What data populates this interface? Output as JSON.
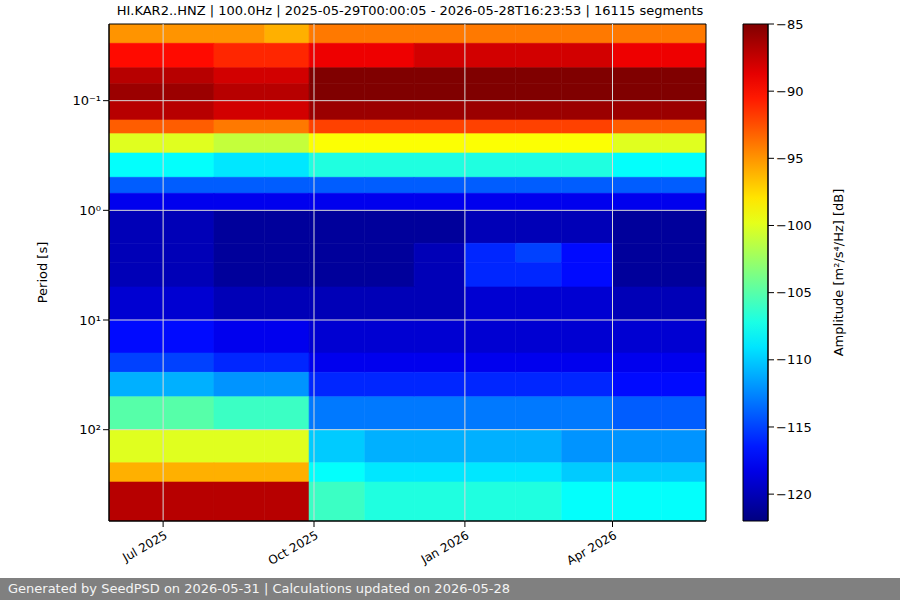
{
  "chart_data": {
    "type": "heatmap",
    "title": "HI.KAR2..HNZ | 100.0Hz | 2025-05-29T00:00:05 - 2026-05-28T16:23:53 | 16115 segments",
    "y_label": "Period [s]",
    "footer": "Generated by SeedPSD on 2026-05-31 | Calculations updated on 2026-05-28",
    "log": "y",
    "grid": true,
    "xlim": [
      "2025-05-29",
      "2026-05-28"
    ],
    "xticks": [
      {
        "value": "2025-07-01",
        "label": "Jul 2025"
      },
      {
        "value": "2025-10-01",
        "label": "Oct 2025"
      },
      {
        "value": "2026-01-01",
        "label": "Jan 2026"
      },
      {
        "value": "2026-04-01",
        "label": "Apr 2026"
      }
    ],
    "ylim": [
      0.02,
      680
    ],
    "yticks": [
      {
        "value": 0.1,
        "label": "10⁻¹"
      },
      {
        "value": 1,
        "label": "10⁰"
      },
      {
        "value": 10,
        "label": "10¹"
      },
      {
        "value": 100,
        "label": "10²"
      }
    ],
    "x_edges": [
      "2025-05-29",
      "2025-07-01",
      "2025-08-01",
      "2025-09-01",
      "2025-09-28",
      "2025-11-01",
      "2025-12-01",
      "2026-01-01",
      "2026-02-01",
      "2026-03-01",
      "2026-04-01",
      "2026-05-01",
      "2026-05-28"
    ],
    "y_edges": [
      0.02,
      0.03,
      0.05,
      0.07,
      0.1,
      0.15,
      0.2,
      0.3,
      0.5,
      0.7,
      1,
      2,
      3,
      5,
      10,
      20,
      30,
      50,
      100,
      200,
      300,
      680
    ],
    "values": [
      [
        -95,
        -95,
        -95,
        -96,
        -94,
        -94,
        -94,
        -94,
        -94,
        -94,
        -94,
        -94
      ],
      [
        -90,
        -90,
        -91,
        -91,
        -89,
        -89,
        -88,
        -88,
        -88,
        -88,
        -89,
        -89
      ],
      [
        -87,
        -87,
        -88,
        -88,
        -85,
        -85,
        -85,
        -85,
        -85,
        -85,
        -85,
        -85
      ],
      [
        -86,
        -86,
        -87,
        -87,
        -85,
        -85,
        -85,
        -85,
        -85,
        -85,
        -85,
        -85
      ],
      [
        -87,
        -87,
        -88,
        -88,
        -86,
        -86,
        -86,
        -86,
        -86,
        -86,
        -86,
        -86
      ],
      [
        -93,
        -93,
        -94,
        -94,
        -92,
        -92,
        -92,
        -92,
        -92,
        -92,
        -93,
        -93
      ],
      [
        -100,
        -100,
        -101,
        -101,
        -99,
        -99,
        -99,
        -99,
        -99,
        -99,
        -100,
        -100
      ],
      [
        -108,
        -108,
        -109,
        -109,
        -107,
        -107,
        -107,
        -107,
        -107,
        -107,
        -108,
        -108
      ],
      [
        -114,
        -114,
        -114,
        -114,
        -114,
        -114,
        -114,
        -114,
        -114,
        -114,
        -114,
        -114
      ],
      [
        -118,
        -118,
        -118,
        -118,
        -118,
        -118,
        -118,
        -118,
        -118,
        -118,
        -118,
        -118
      ],
      [
        -120,
        -120,
        -121,
        -121,
        -121,
        -121,
        -121,
        -120,
        -120,
        -120,
        -121,
        -121
      ],
      [
        -120,
        -120,
        -121,
        -121,
        -121,
        -121,
        -120,
        -116,
        -115,
        -117,
        -121,
        -121
      ],
      [
        -120,
        -120,
        -121,
        -121,
        -121,
        -121,
        -120,
        -116,
        -116,
        -117,
        -121,
        -121
      ],
      [
        -119,
        -119,
        -120,
        -120,
        -120,
        -120,
        -120,
        -119,
        -119,
        -119,
        -120,
        -120
      ],
      [
        -117,
        -117,
        -118,
        -118,
        -119,
        -119,
        -119,
        -119,
        -119,
        -119,
        -119,
        -119
      ],
      [
        -115,
        -115,
        -116,
        -116,
        -118,
        -118,
        -118,
        -118,
        -118,
        -118,
        -118,
        -118
      ],
      [
        -111,
        -111,
        -112,
        -112,
        -116,
        -116,
        -116,
        -116,
        -116,
        -116,
        -117,
        -117
      ],
      [
        -105,
        -105,
        -106,
        -106,
        -113,
        -113,
        -113,
        -113,
        -113,
        -113,
        -114,
        -114
      ],
      [
        -100,
        -100,
        -100,
        -100,
        -110,
        -111,
        -111,
        -111,
        -111,
        -112,
        -112,
        -112
      ],
      [
        -96,
        -96,
        -96,
        -96,
        -108,
        -109,
        -109,
        -109,
        -109,
        -110,
        -110,
        -110
      ],
      [
        -87,
        -87,
        -87,
        -87,
        -106,
        -107,
        -107,
        -107,
        -107,
        -108,
        -108,
        -108
      ]
    ],
    "colorbar": {
      "label": "Amplitude [m²/s⁴/Hz] [dB]",
      "lim": [
        -122,
        -85
      ],
      "ticks": [
        {
          "value": -85,
          "label": "−85"
        },
        {
          "value": -90,
          "label": "−90"
        },
        {
          "value": -95,
          "label": "−95"
        },
        {
          "value": -100,
          "label": "−100"
        },
        {
          "value": -105,
          "label": "−105"
        },
        {
          "value": -110,
          "label": "−110"
        },
        {
          "value": -115,
          "label": "−115"
        },
        {
          "value": -120,
          "label": "−120"
        }
      ]
    }
  }
}
